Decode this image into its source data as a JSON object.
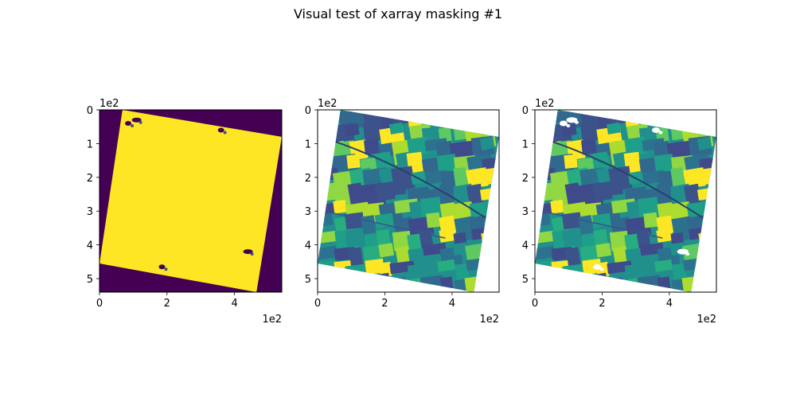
{
  "figure": {
    "suptitle": "Visual test of xarray masking #1"
  },
  "colors": {
    "viridis_dark": "#440154",
    "viridis_yellow": "#fde725",
    "viridis_teal": "#21908d",
    "viridis_blue": "#3b528b",
    "viridis_green": "#5ec962"
  },
  "chart_data": [
    {
      "type": "heatmap",
      "title": "",
      "description": "Binary mask: valid-data footprint (yellow) on no-data background (purple), with small masked patches",
      "xlim": [
        0,
        540
      ],
      "ylim": [
        540,
        0
      ],
      "axis_scale_label": "1e2",
      "xticks": [
        0,
        200,
        400
      ],
      "xtick_labels": [
        "0",
        "2",
        "4"
      ],
      "yticks": [
        0,
        100,
        200,
        300,
        400,
        500
      ],
      "ytick_labels": [
        "0",
        "1",
        "2",
        "3",
        "4",
        "5"
      ],
      "footprint_corners": [
        [
          68,
          0
        ],
        [
          540,
          80
        ],
        [
          465,
          540
        ],
        [
          0,
          455
        ]
      ],
      "masked_patches": [
        [
          85,
          40
        ],
        [
          110,
          30
        ],
        [
          360,
          60
        ],
        [
          440,
          420
        ],
        [
          185,
          465
        ]
      ],
      "colormap": "viridis"
    },
    {
      "type": "heatmap",
      "title": "",
      "description": "Raw imagery band (agricultural fields) rendered with viridis, no-data shown white",
      "xlim": [
        0,
        540
      ],
      "ylim": [
        540,
        0
      ],
      "axis_scale_label": "1e2",
      "xticks": [
        0,
        200,
        400
      ],
      "xtick_labels": [
        "0",
        "2",
        "4"
      ],
      "yticks": [
        0,
        100,
        200,
        300,
        400,
        500
      ],
      "ytick_labels": [
        "0",
        "1",
        "2",
        "3",
        "4",
        "5"
      ],
      "footprint_corners": [
        [
          68,
          0
        ],
        [
          540,
          80
        ],
        [
          465,
          540
        ],
        [
          0,
          455
        ]
      ],
      "colormap": "viridis"
    },
    {
      "type": "heatmap",
      "title": "",
      "description": "Imagery band after masking: masked patches appear as white holes",
      "xlim": [
        0,
        540
      ],
      "ylim": [
        540,
        0
      ],
      "axis_scale_label": "1e2",
      "xticks": [
        0,
        200,
        400
      ],
      "xtick_labels": [
        "0",
        "2",
        "4"
      ],
      "yticks": [
        0,
        100,
        200,
        300,
        400,
        500
      ],
      "ytick_labels": [
        "0",
        "1",
        "2",
        "3",
        "4",
        "5"
      ],
      "footprint_corners": [
        [
          68,
          0
        ],
        [
          540,
          80
        ],
        [
          465,
          540
        ],
        [
          0,
          455
        ]
      ],
      "masked_patches": [
        [
          85,
          40
        ],
        [
          110,
          30
        ],
        [
          360,
          60
        ],
        [
          440,
          420
        ],
        [
          185,
          465
        ]
      ],
      "colormap": "viridis"
    }
  ]
}
